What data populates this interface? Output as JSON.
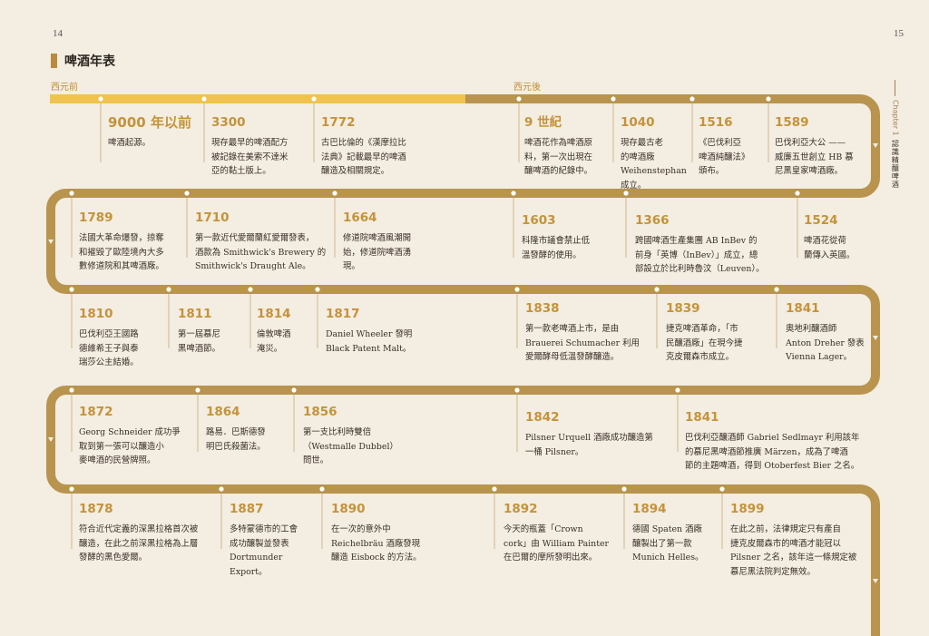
{
  "page": {
    "left_number": "14",
    "right_number": "15"
  },
  "title": "啤酒年表",
  "eras": {
    "bc": "西元前",
    "ad": "西元後"
  },
  "side": {
    "chapter": "Chapter 1",
    "text": "認識精釀啤酒"
  },
  "colors": {
    "road": "#c5a15a",
    "bar_light": "#f0c24e",
    "bar_dark": "#b8944e",
    "year": "#c4933a"
  },
  "rows": [
    {
      "events": [
        {
          "year": "9000 年以前",
          "lines": [
            "啤酒起源。"
          ]
        },
        {
          "year": "3300",
          "lines": [
            "現存最早的啤酒配方",
            "被記錄在美索不達米",
            "亞的黏土版上。"
          ]
        },
        {
          "year": "1772",
          "lines": [
            "古巴比倫的《漢摩拉比",
            "法典》記載最早的啤酒",
            "釀造及相關規定。"
          ]
        },
        {
          "year": "9 世紀",
          "lines": [
            "啤酒花作為啤酒原",
            "料，第一次出現在",
            "釀啤酒的紀錄中。"
          ]
        },
        {
          "year": "1040",
          "lines": [
            "現存最古老",
            "的啤酒廠",
            "Weihenstephan",
            "成立。"
          ]
        },
        {
          "year": "1516",
          "lines": [
            "《巴伐利亞",
            "啤酒純釀法》",
            "頒布。"
          ]
        },
        {
          "year": "1589",
          "lines": [
            "巴伐利亞大公 ——",
            "威廉五世創立 HB 慕",
            "尼黑皇家啤酒廠。"
          ]
        }
      ]
    },
    {
      "events": [
        {
          "year": "1789",
          "lines": [
            "法國大革命爆發，掠奪",
            "和摧毀了歐陸境內大多",
            "數修道院和其啤酒廠。"
          ]
        },
        {
          "year": "1710",
          "lines": [
            "第一款近代愛爾蘭紅愛爾發表，",
            "酒款為 Smithwick's Brewery 的",
            "Smithwick's Draught Ale。"
          ]
        },
        {
          "year": "1664",
          "lines": [
            "修道院啤酒風潮開",
            "始，修道院啤酒湧",
            "現。"
          ]
        },
        {
          "year": "1603",
          "lines": [
            "科隆市議會禁止低",
            "溫發酵的使用。"
          ]
        },
        {
          "year": "1366",
          "lines": [
            "跨國啤酒生產集團 AB InBev 的",
            "前身「英博（InBev）」成立，總",
            "部設立於比利時魯汶（Leuven）。"
          ]
        },
        {
          "year": "1524",
          "lines": [
            "啤酒花從荷",
            "蘭傳入英國。"
          ]
        }
      ]
    },
    {
      "events": [
        {
          "year": "1810",
          "lines": [
            "巴伐利亞王國路",
            "德維希王子與泰",
            "瑞莎公主結婚。"
          ]
        },
        {
          "year": "1811",
          "lines": [
            "第一屆慕尼",
            "黑啤酒節。"
          ]
        },
        {
          "year": "1814",
          "lines": [
            "倫敦啤酒",
            "淹災。"
          ]
        },
        {
          "year": "1817",
          "lines": [
            "Daniel Wheeler 發明",
            "Black Patent Malt。"
          ]
        },
        {
          "year": "1838",
          "lines": [
            "第一款老啤酒上市，是由",
            "Brauerei Schumacher 利用",
            "愛爾酵母低溫發酵釀造。"
          ]
        },
        {
          "year": "1839",
          "lines": [
            "捷克啤酒革命，「市",
            "民釀酒廠」在現今捷",
            "克皮爾森市成立。"
          ]
        },
        {
          "year": "1841",
          "lines": [
            "奧地利釀酒師",
            "Anton Dreher 發表",
            "Vienna Lager。"
          ]
        }
      ]
    },
    {
      "events": [
        {
          "year": "1872",
          "lines": [
            "Georg Schneider 成功爭",
            "取到第一張可以釀造小",
            "麥啤酒的民營牌照。"
          ]
        },
        {
          "year": "1864",
          "lines": [
            "路易．巴斯德發",
            "明巴氏殺菌法。"
          ]
        },
        {
          "year": "1856",
          "lines": [
            "第一支比利時雙倍",
            "（Westmalle Dubbel）",
            "問世。"
          ]
        },
        {
          "year": "1842",
          "lines": [
            "Pilsner Urquell 酒廠成功釀造第",
            "一桶 Pilsner。"
          ]
        },
        {
          "year": "1841",
          "lines": [
            "巴伐利亞釀酒師 Gabriel Sedlmayr 利用該年",
            "的慕尼黑啤酒節推廣 Märzen，成為了啤酒",
            "節的主題啤酒，得到 Otoberfest Bier 之名。"
          ]
        }
      ]
    },
    {
      "events": [
        {
          "year": "1878",
          "lines": [
            "符合近代定義的深黑拉格首次被",
            "釀造，在此之前深黑拉格為上層",
            "發酵的黑色愛爾。"
          ]
        },
        {
          "year": "1887",
          "lines": [
            "多特蒙德市的工會",
            "成功釀製並發表",
            "Dortmunder Export。"
          ]
        },
        {
          "year": "1890",
          "lines": [
            "在一次的意外中",
            "Reichelbräu 酒廠發現",
            "釀造 Eisbock 的方法。"
          ]
        },
        {
          "year": "1892",
          "lines": [
            "今天的瓶蓋「Crown",
            "cork」由 William Painter",
            "在巴爾的摩所發明出來。"
          ]
        },
        {
          "year": "1894",
          "lines": [
            "德國 Spaten 酒廠",
            "釀製出了第一款",
            "Munich Helles。"
          ]
        },
        {
          "year": "1899",
          "lines": [
            "在此之前，法律規定只有產自",
            "捷克皮爾森市的啤酒才能冠以",
            "Pilsner 之名，該年這一條規定被",
            "慕尼黑法院判定無效。"
          ]
        }
      ]
    }
  ]
}
